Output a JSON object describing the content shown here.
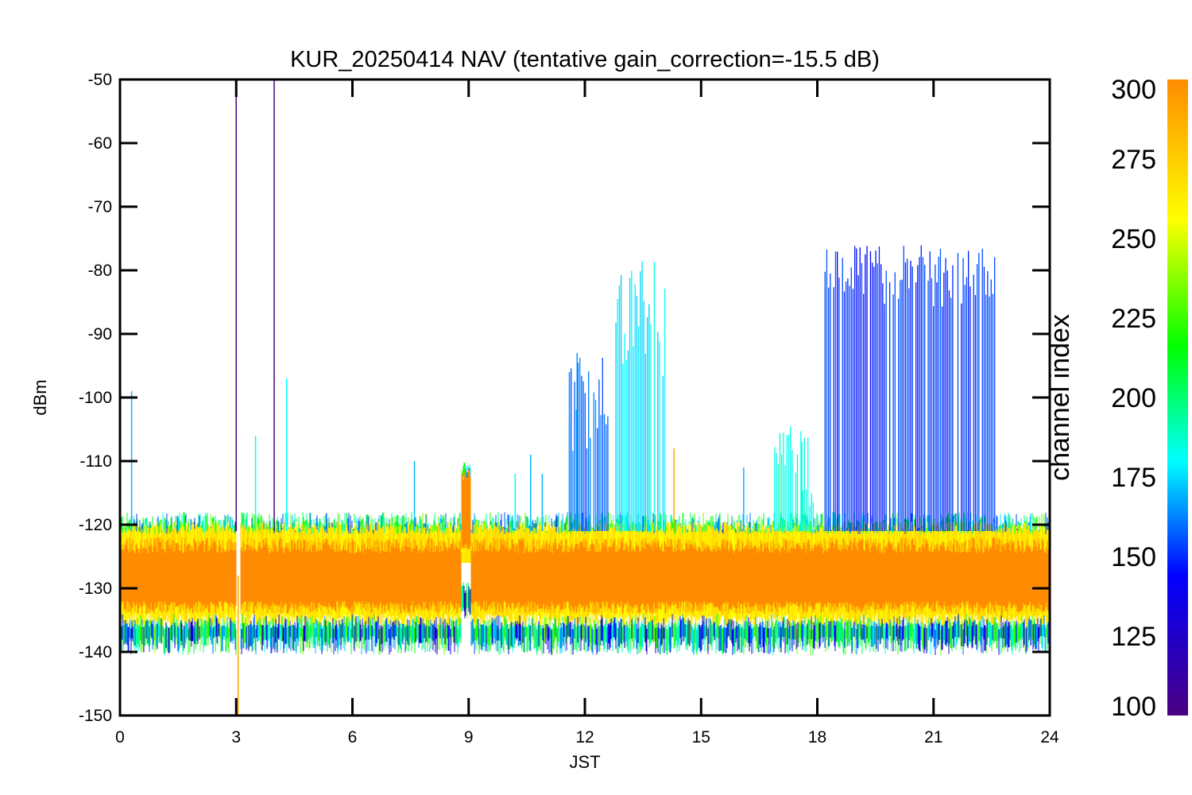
{
  "chart_data": {
    "type": "line",
    "title": "KUR_20250414 NAV (tentative gain_correction=-15.5 dB)",
    "xlabel": "JST",
    "ylabel": "dBm",
    "xlim": [
      0,
      24
    ],
    "ylim": [
      -150,
      -50
    ],
    "x_ticks": [
      "0",
      "3",
      "6",
      "9",
      "12",
      "15",
      "18",
      "21",
      "24"
    ],
    "y_ticks": [
      "-50",
      "-60",
      "-70",
      "-80",
      "-90",
      "-100",
      "-110",
      "-120",
      "-130",
      "-140",
      "-150"
    ],
    "grid": false,
    "colorbar": {
      "label": "channel index",
      "range": [
        100,
        300
      ],
      "ticks": [
        "300",
        "275",
        "250",
        "225",
        "200",
        "175",
        "150",
        "125",
        "100"
      ],
      "colormap": "rainbow (purple-blue-cyan-green-yellow-orange)",
      "colors": [
        "#4b0082",
        "#0000ff",
        "#00ffff",
        "#00ff00",
        "#ffff00",
        "#ff8c00"
      ]
    },
    "noise_floor": {
      "median_dbm": -128,
      "typical_band_dbm": [
        -138,
        -120
      ],
      "dominant_color": "#ff8c00"
    },
    "gaps": [
      {
        "x_start": 3.0,
        "x_end": 3.1
      }
    ],
    "elevated_segment": {
      "x_start": 8.8,
      "x_end": 9.05,
      "level_dbm": [
        -124,
        -110
      ]
    },
    "spikes": [
      {
        "x": 0.3,
        "peak": -99,
        "channel": 170
      },
      {
        "x": 3.0,
        "peak": -50,
        "channel": 100
      },
      {
        "x": 3.05,
        "peak": -150,
        "channel": 290
      },
      {
        "x": 3.98,
        "peak": -50,
        "channel": 100
      },
      {
        "x": 3.5,
        "peak": -106,
        "channel": 180
      },
      {
        "x": 4.3,
        "peak": -97,
        "channel": 180
      },
      {
        "x": 7.6,
        "peak": -110,
        "channel": 170
      },
      {
        "x": 10.2,
        "peak": -112,
        "channel": 180
      },
      {
        "x": 10.6,
        "peak": -109,
        "channel": 170
      },
      {
        "x": 10.9,
        "peak": -112,
        "channel": 170
      },
      {
        "x": 11.6,
        "peak": -96,
        "channel": 165
      },
      {
        "x": 11.8,
        "peak": -93,
        "channel": 165
      },
      {
        "x": 14.3,
        "peak": -108,
        "channel": 290
      },
      {
        "x": 16.1,
        "peak": -111,
        "channel": 170
      },
      {
        "x": 17.6,
        "peak": -107,
        "channel": 185
      }
    ],
    "bursts": [
      {
        "x_start": 11.6,
        "x_end": 12.6,
        "peak_dbm": [
          -110,
          -93
        ],
        "channel": 160
      },
      {
        "x_start": 12.8,
        "x_end": 14.1,
        "peak_dbm": [
          -98,
          -78
        ],
        "channel": 178
      },
      {
        "x_start": 16.9,
        "x_end": 17.9,
        "peak_dbm": [
          -118,
          -104
        ],
        "channel": 185
      },
      {
        "x_start": 18.2,
        "x_end": 22.6,
        "peak_dbm": [
          -86,
          -76
        ],
        "channel": 150
      }
    ]
  }
}
